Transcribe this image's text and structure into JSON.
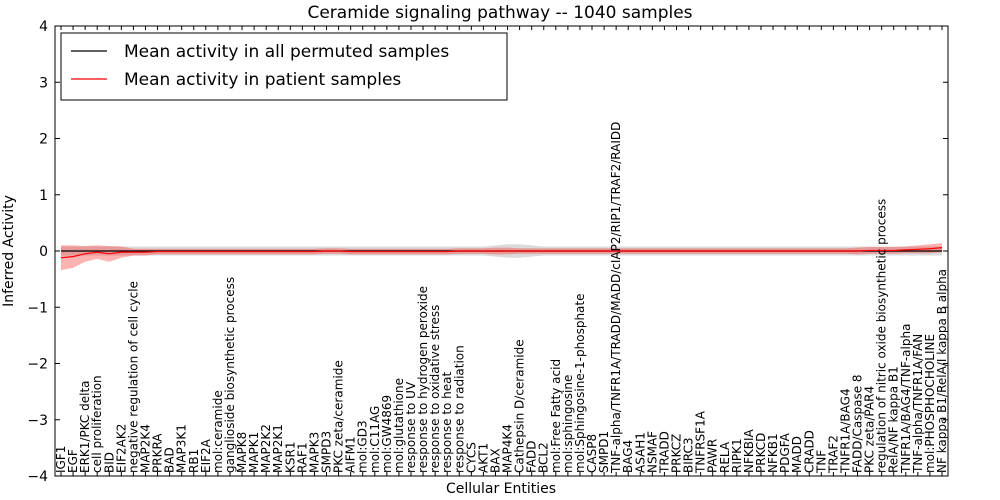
{
  "chart_data": {
    "type": "line",
    "title": "Ceramide signaling pathway -- 1040 samples",
    "xlabel": "Cellular Entities",
    "ylabel": "Inferred Activity",
    "ylim": [
      -4,
      4
    ],
    "yticks": [
      -4,
      -3,
      -2,
      -1,
      0,
      1,
      2,
      3,
      4
    ],
    "ytick_labels": [
      "−4",
      "−3",
      "−2",
      "−1",
      "0",
      "1",
      "2",
      "3",
      "4"
    ],
    "grid": false,
    "legend_position": "top-left",
    "colors": {
      "permuted": "#000000",
      "patient": "#ff0000",
      "permuted_band": "#bdbdbd",
      "patient_band": "#ff0000"
    },
    "categories": [
      "IGF1",
      "EGF",
      "ERK1/PKC delta",
      "cell proliferation",
      "BID",
      "EIF2AK2",
      "negative regulation of cell cycle",
      "MAP2K4",
      "PRKRA",
      "BAD",
      "MAP3K1",
      "RB1",
      "EIF2A",
      "mol:ceramide",
      "ganglioside biosynthetic process",
      "MAPK8",
      "MAPK1",
      "MAP2K2",
      "MAP2K1",
      "KSR1",
      "RAF1",
      "MAPK3",
      "SMPD3",
      "PKC zeta/ceramide",
      "AIFM1",
      "mol:GD3",
      "mol:C11AG",
      "mol:GW4869",
      "mol:glutathione",
      "response to UV",
      "response to hydrogen peroxide",
      "response to oxidative stress",
      "response to heat",
      "response to radiation",
      "CYCS",
      "AKT1",
      "BAX",
      "MAP4K4",
      "Cathepsin D/ceramide",
      "FADD",
      "BCL2",
      "mol:Free Fatty acid",
      "mol:sphingosine",
      "mol:Sphingosine-1-phosphate",
      "CASP8",
      "SMPD1",
      "TNF-alpha/TNFR1A/TRADD/MADD/cIAP2/RIP1/TRAF2/RAIDD",
      "BAG4",
      "ASAH1",
      "NSMAF",
      "TRADD",
      "PRKCZ",
      "BIRC3",
      "TNFRSF1A",
      "PAWR",
      "RELA",
      "RIPK1",
      "NFKBIA",
      "PRKCD",
      "NFKB1",
      "PDGFA",
      "MADD",
      "CRADD",
      "TNF",
      "TRAF2",
      "TNFR1A/BAG4",
      "FADD/Caspase 8",
      "PKC zeta/PAR4",
      "regulation of nitric oxide biosynthetic process",
      "RelA/NF kappa B1",
      "TNFR1A/BAG4/TNF-alpha",
      "TNF-alpha/TNFR1A/FAN",
      "mol:PHOSPHOCHOLINE",
      "NF kappa B1/RelA/I kappa B alpha"
    ],
    "series": [
      {
        "name": "Mean activity in all permuted samples",
        "values": [
          0.0,
          0.0,
          0.0,
          0.0,
          0.0,
          0.0,
          0.0,
          0.0,
          0.0,
          0.0,
          0.0,
          0.0,
          0.0,
          0.0,
          0.0,
          0.0,
          0.0,
          0.0,
          0.0,
          0.0,
          0.0,
          0.0,
          0.0,
          0.0,
          0.0,
          0.0,
          0.0,
          0.0,
          0.0,
          0.0,
          0.0,
          0.0,
          0.0,
          0.0,
          0.0,
          0.0,
          0.0,
          0.0,
          0.0,
          0.0,
          0.0,
          0.0,
          0.0,
          0.0,
          0.0,
          0.0,
          0.0,
          0.0,
          0.0,
          0.0,
          0.0,
          0.0,
          0.0,
          0.0,
          0.0,
          0.0,
          0.0,
          0.0,
          0.0,
          0.0,
          0.0,
          0.0,
          0.0,
          0.0,
          0.0,
          0.0,
          0.0,
          0.0,
          0.0,
          0.0,
          0.0,
          0.0,
          0.0,
          0.0
        ],
        "spread": [
          0.08,
          0.08,
          0.08,
          0.08,
          0.08,
          0.08,
          0.08,
          0.08,
          0.08,
          0.08,
          0.08,
          0.08,
          0.08,
          0.08,
          0.08,
          0.08,
          0.08,
          0.08,
          0.08,
          0.08,
          0.08,
          0.08,
          0.08,
          0.08,
          0.08,
          0.08,
          0.08,
          0.08,
          0.08,
          0.08,
          0.08,
          0.08,
          0.08,
          0.08,
          0.08,
          0.08,
          0.1,
          0.12,
          0.12,
          0.1,
          0.08,
          0.08,
          0.08,
          0.08,
          0.08,
          0.08,
          0.08,
          0.08,
          0.08,
          0.08,
          0.08,
          0.08,
          0.08,
          0.08,
          0.08,
          0.08,
          0.08,
          0.08,
          0.08,
          0.08,
          0.08,
          0.08,
          0.08,
          0.08,
          0.08,
          0.08,
          0.08,
          0.08,
          0.08,
          0.08,
          0.08,
          0.08,
          0.08,
          0.08
        ]
      },
      {
        "name": "Mean activity in patient samples",
        "values": [
          -0.12,
          -0.1,
          -0.05,
          -0.02,
          -0.05,
          -0.02,
          -0.02,
          -0.02,
          -0.01,
          -0.01,
          -0.01,
          -0.01,
          -0.01,
          -0.01,
          -0.01,
          -0.01,
          -0.01,
          -0.01,
          -0.01,
          -0.01,
          -0.01,
          -0.01,
          0.0,
          0.0,
          -0.01,
          -0.01,
          -0.01,
          -0.01,
          -0.01,
          -0.01,
          -0.01,
          -0.01,
          -0.01,
          0.0,
          0.0,
          0.0,
          0.0,
          0.0,
          0.0,
          0.0,
          0.0,
          0.0,
          0.0,
          0.0,
          0.0,
          0.0,
          0.0,
          0.0,
          0.0,
          0.0,
          0.0,
          0.0,
          0.0,
          0.0,
          0.0,
          0.0,
          0.0,
          0.0,
          0.0,
          0.0,
          0.0,
          0.0,
          0.0,
          0.0,
          0.0,
          0.0,
          0.0,
          0.01,
          0.01,
          0.01,
          0.02,
          0.03,
          0.04,
          0.06
        ],
        "spread": [
          0.22,
          0.2,
          0.14,
          0.12,
          0.14,
          0.1,
          0.06,
          0.06,
          0.05,
          0.05,
          0.05,
          0.05,
          0.05,
          0.05,
          0.05,
          0.05,
          0.05,
          0.05,
          0.05,
          0.05,
          0.05,
          0.05,
          0.05,
          0.05,
          0.05,
          0.05,
          0.05,
          0.05,
          0.05,
          0.05,
          0.05,
          0.05,
          0.05,
          0.05,
          0.05,
          0.05,
          0.06,
          0.06,
          0.05,
          0.05,
          0.05,
          0.05,
          0.05,
          0.05,
          0.05,
          0.05,
          0.05,
          0.05,
          0.05,
          0.05,
          0.05,
          0.05,
          0.05,
          0.05,
          0.05,
          0.05,
          0.05,
          0.05,
          0.05,
          0.05,
          0.05,
          0.05,
          0.05,
          0.05,
          0.05,
          0.05,
          0.06,
          0.06,
          0.06,
          0.06,
          0.06,
          0.07,
          0.08,
          0.08
        ]
      }
    ]
  }
}
